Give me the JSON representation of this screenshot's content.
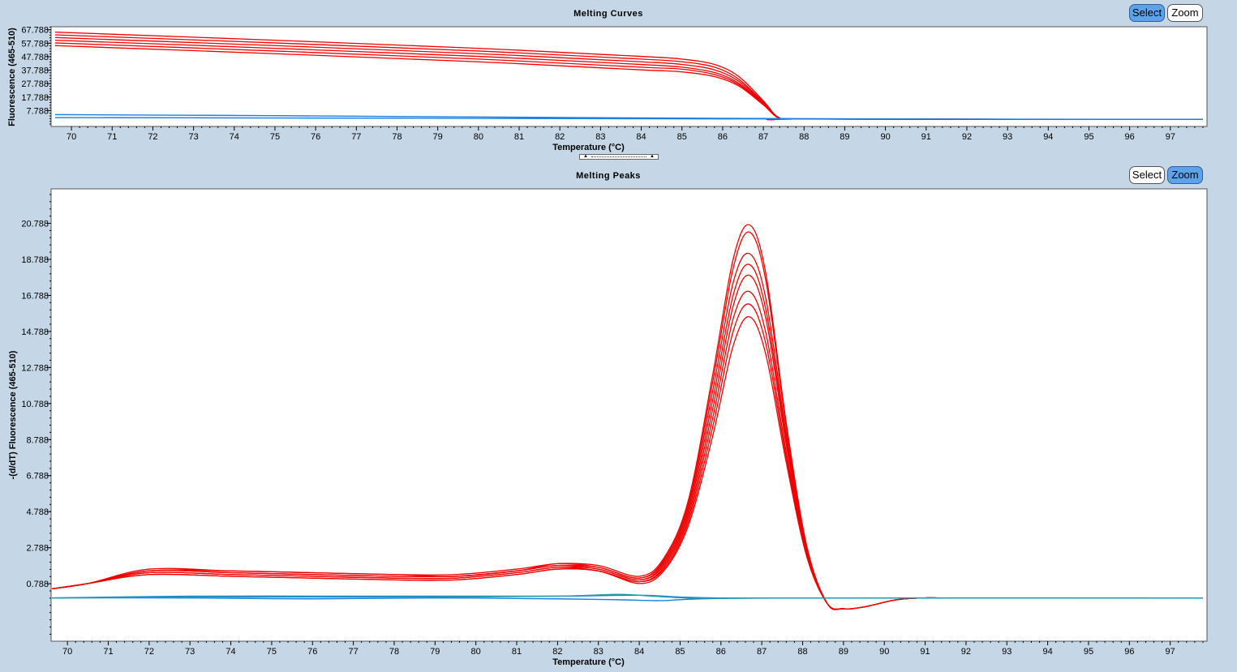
{
  "top_panel": {
    "title": "Melting Curves",
    "select_label": "Select",
    "zoom_label": "Zoom",
    "active_mode": "select"
  },
  "bottom_panel": {
    "title": "Melting Peaks",
    "select_label": "Select",
    "zoom_label": "Zoom",
    "active_mode": "zoom"
  },
  "colors": {
    "background": "#c5d7e7",
    "positive_series": "#ee0000",
    "negative_series": "#1a7fe0",
    "active_button": "#5ea2ea"
  },
  "chart_data": [
    {
      "type": "line",
      "title": "Melting Curves",
      "xlabel": "Temperature (°C)",
      "ylabel": "Fluorescence (465-510)",
      "xlim": [
        69.5,
        97.9
      ],
      "ylim": [
        -4,
        70
      ],
      "x_ticks": [
        "70",
        "71",
        "72",
        "73",
        "74",
        "75",
        "76",
        "77",
        "78",
        "79",
        "80",
        "81",
        "82",
        "83",
        "84",
        "85",
        "86",
        "87",
        "88",
        "89",
        "90",
        "91",
        "92",
        "93",
        "94",
        "95",
        "96",
        "97"
      ],
      "y_ticks": [
        "7.788",
        "17.788",
        "27.788",
        "37.788",
        "47.788",
        "57.788",
        "67.788"
      ],
      "series": [
        {
          "group": "positive",
          "color": "#ee0000",
          "x": [
            69.6,
            75,
            80,
            84,
            85,
            85.8,
            86.4,
            87,
            87.4,
            88,
            97.8
          ],
          "y": [
            56,
            50,
            44,
            38,
            36.5,
            33,
            26,
            12,
            2,
            1.5,
            1.2
          ]
        },
        {
          "group": "positive",
          "color": "#ee0000",
          "x": [
            69.6,
            75,
            80,
            84,
            85,
            85.8,
            86.4,
            87,
            87.4,
            88,
            97.8
          ],
          "y": [
            58,
            52,
            46,
            40,
            38.5,
            34.5,
            27,
            12.5,
            2,
            1.5,
            1.2
          ]
        },
        {
          "group": "positive",
          "color": "#ee0000",
          "x": [
            69.6,
            75,
            80,
            84,
            85,
            85.8,
            86.4,
            87,
            87.4,
            88,
            97.8
          ],
          "y": [
            60,
            54,
            48,
            42,
            40,
            36,
            28,
            13,
            2.2,
            1.5,
            1.2
          ]
        },
        {
          "group": "positive",
          "color": "#ee0000",
          "x": [
            69.6,
            75,
            80,
            84,
            85,
            85.8,
            86.4,
            87,
            87.4,
            88,
            97.8
          ],
          "y": [
            62,
            56,
            50,
            44,
            42,
            38,
            29.5,
            13.5,
            2.2,
            1.5,
            1.2
          ]
        },
        {
          "group": "positive",
          "color": "#ee0000",
          "x": [
            69.6,
            75,
            80,
            84,
            85,
            85.8,
            86.4,
            87,
            87.4,
            88,
            97.8
          ],
          "y": [
            64,
            58,
            52,
            46,
            44,
            40,
            31,
            14,
            2.3,
            1.5,
            1.2
          ]
        },
        {
          "group": "positive",
          "color": "#ee0000",
          "x": [
            69.6,
            75,
            80,
            84,
            85,
            85.8,
            86.4,
            87,
            87.4,
            88,
            97.8
          ],
          "y": [
            66,
            60,
            54,
            48,
            46,
            42,
            33,
            15,
            2.3,
            1.5,
            1.2
          ]
        },
        {
          "group": "negative",
          "color": "#1a7fe0",
          "x": [
            69.6,
            75,
            80,
            85,
            90,
            97.8
          ],
          "y": [
            4.8,
            4.0,
            3.0,
            2.2,
            1.6,
            1.2
          ]
        },
        {
          "group": "negative",
          "color": "#1a7fe0",
          "x": [
            69.6,
            75,
            80,
            85,
            90,
            97.8
          ],
          "y": [
            2.6,
            2.3,
            2.0,
            1.7,
            1.4,
            1.2
          ]
        }
      ]
    },
    {
      "type": "line",
      "title": "Melting Peaks",
      "xlabel": "Temperature (°C)",
      "ylabel": "-(d/dT) Fluorescence (465-510)",
      "xlim": [
        69.6,
        97.9
      ],
      "ylim": [
        -2.4,
        22.7
      ],
      "x_ticks": [
        "70",
        "71",
        "72",
        "73",
        "74",
        "75",
        "76",
        "77",
        "78",
        "79",
        "80",
        "81",
        "82",
        "83",
        "84",
        "85",
        "86",
        "87",
        "88",
        "89",
        "90",
        "91",
        "92",
        "93",
        "94",
        "95",
        "96",
        "97"
      ],
      "y_ticks": [
        "0.788",
        "2.788",
        "4.788",
        "6.788",
        "8.788",
        "10.788",
        "12.788",
        "14.788",
        "16.788",
        "18.788",
        "20.788"
      ],
      "series": [
        {
          "group": "positive",
          "color": "#ee0000",
          "x": [
            69.6,
            70.5,
            72,
            74,
            76,
            78,
            79.5,
            81,
            82,
            83,
            84,
            84.6,
            85.2,
            85.8,
            86.3,
            86.7,
            87.1,
            87.6,
            88.1,
            88.6,
            89.0,
            89.5,
            90.3,
            91,
            92,
            97.8
          ],
          "y": [
            0.5,
            0.8,
            1.3,
            1.2,
            1.1,
            1.0,
            1.0,
            1.3,
            1.6,
            1.5,
            0.8,
            1.5,
            4,
            9,
            14,
            15.6,
            13.5,
            7.5,
            2.3,
            -0.3,
            -0.6,
            -0.5,
            -0.1,
            0,
            0,
            0
          ]
        },
        {
          "group": "positive",
          "color": "#ee0000",
          "x": [
            69.6,
            70.5,
            72,
            74,
            76,
            78,
            79.5,
            81,
            82,
            83,
            84,
            84.6,
            85.2,
            85.8,
            86.3,
            86.7,
            87.1,
            87.6,
            88.1,
            88.6,
            89.0,
            89.5,
            90.3,
            91,
            92,
            97.8
          ],
          "y": [
            0.5,
            0.8,
            1.3,
            1.2,
            1.1,
            1.0,
            1.0,
            1.3,
            1.6,
            1.5,
            0.9,
            1.6,
            4.2,
            9.5,
            14.8,
            16.3,
            14.1,
            7.8,
            2.4,
            -0.3,
            -0.6,
            -0.5,
            -0.1,
            0,
            0,
            0
          ]
        },
        {
          "group": "positive",
          "color": "#ee0000",
          "x": [
            69.6,
            70.5,
            72,
            74,
            76,
            78,
            79.5,
            81,
            82,
            83,
            84,
            84.6,
            85.2,
            85.8,
            86.3,
            86.7,
            87.1,
            87.6,
            88.1,
            88.6,
            89.0,
            89.5,
            90.3,
            91,
            92,
            97.8
          ],
          "y": [
            0.5,
            0.8,
            1.4,
            1.3,
            1.2,
            1.1,
            1.1,
            1.4,
            1.7,
            1.5,
            0.9,
            1.7,
            4.4,
            10,
            15.5,
            17.0,
            14.7,
            8.1,
            2.4,
            -0.3,
            -0.6,
            -0.5,
            -0.1,
            0,
            0,
            0
          ]
        },
        {
          "group": "positive",
          "color": "#ee0000",
          "x": [
            69.6,
            70.5,
            72,
            74,
            76,
            78,
            79.5,
            81,
            82,
            83,
            84,
            84.6,
            85.2,
            85.8,
            86.3,
            86.7,
            87.1,
            87.6,
            88.1,
            88.6,
            89.0,
            89.5,
            90.3,
            91,
            92,
            97.8
          ],
          "y": [
            0.5,
            0.8,
            1.4,
            1.3,
            1.2,
            1.1,
            1.1,
            1.4,
            1.7,
            1.6,
            1.0,
            1.8,
            4.6,
            10.5,
            16.2,
            17.9,
            15.5,
            8.5,
            2.5,
            -0.3,
            -0.6,
            -0.5,
            -0.1,
            0,
            0,
            0
          ]
        },
        {
          "group": "positive",
          "color": "#ee0000",
          "x": [
            69.6,
            70.5,
            72,
            74,
            76,
            78,
            79.5,
            81,
            82,
            83,
            84,
            84.6,
            85.2,
            85.8,
            86.3,
            86.7,
            87.1,
            87.6,
            88.1,
            88.6,
            89.0,
            89.5,
            90.3,
            91,
            92,
            97.8
          ],
          "y": [
            0.5,
            0.8,
            1.5,
            1.4,
            1.3,
            1.2,
            1.2,
            1.5,
            1.8,
            1.6,
            1.0,
            1.9,
            4.8,
            11,
            16.8,
            18.5,
            16.0,
            8.8,
            2.6,
            -0.3,
            -0.6,
            -0.5,
            -0.1,
            0,
            0,
            0
          ]
        },
        {
          "group": "positive",
          "color": "#ee0000",
          "x": [
            69.6,
            70.5,
            72,
            74,
            76,
            78,
            79.5,
            81,
            82,
            83,
            84,
            84.6,
            85.2,
            85.8,
            86.3,
            86.7,
            87.1,
            87.6,
            88.1,
            88.6,
            89.0,
            89.5,
            90.3,
            91,
            92,
            97.8
          ],
          "y": [
            0.5,
            0.8,
            1.5,
            1.4,
            1.3,
            1.2,
            1.2,
            1.5,
            1.8,
            1.7,
            1.1,
            2.0,
            5.0,
            11.5,
            17.5,
            19.1,
            16.6,
            9.1,
            2.7,
            -0.3,
            -0.6,
            -0.5,
            -0.1,
            0,
            0,
            0
          ]
        },
        {
          "group": "positive",
          "color": "#ee0000",
          "x": [
            69.6,
            70.5,
            72,
            74,
            76,
            78,
            79.5,
            81,
            82,
            83,
            84,
            84.6,
            85.2,
            85.8,
            86.3,
            86.7,
            87.1,
            87.6,
            88.1,
            88.6,
            89.0,
            89.5,
            90.3,
            91,
            92,
            97.8
          ],
          "y": [
            0.5,
            0.8,
            1.5,
            1.5,
            1.4,
            1.3,
            1.2,
            1.5,
            1.9,
            1.7,
            1.1,
            2.1,
            5.2,
            12,
            18.3,
            20.3,
            17.6,
            9.5,
            2.8,
            -0.3,
            -0.6,
            -0.5,
            -0.1,
            0,
            0,
            0
          ]
        },
        {
          "group": "positive",
          "color": "#ee0000",
          "x": [
            69.6,
            70.5,
            72,
            74,
            76,
            78,
            79.5,
            81,
            82,
            83,
            84,
            84.6,
            85.2,
            85.8,
            86.3,
            86.7,
            87.1,
            87.6,
            88.1,
            88.6,
            89.0,
            89.5,
            90.3,
            91,
            92,
            97.8
          ],
          "y": [
            0.5,
            0.8,
            1.6,
            1.5,
            1.4,
            1.3,
            1.3,
            1.6,
            1.9,
            1.8,
            1.2,
            2.2,
            5.4,
            12.4,
            18.8,
            20.7,
            18.0,
            9.7,
            2.9,
            -0.3,
            -0.6,
            -0.5,
            -0.1,
            0,
            0,
            0
          ]
        },
        {
          "group": "negative",
          "color": "#1a7fe0",
          "x": [
            69.6,
            73,
            76,
            79,
            82,
            84,
            85,
            86,
            88,
            97.8
          ],
          "y": [
            0,
            0.1,
            0.1,
            0.1,
            0.1,
            0.15,
            0.05,
            0,
            0,
            0
          ]
        },
        {
          "group": "negative",
          "color": "#1a7fe0",
          "x": [
            69.6,
            73,
            76,
            79,
            82,
            83.5,
            84.5,
            85.5,
            88,
            97.8
          ],
          "y": [
            0,
            0,
            -0.05,
            0,
            -0.05,
            -0.1,
            -0.15,
            -0.05,
            0,
            0
          ]
        },
        {
          "group": "negative",
          "color": "#20a0a0",
          "x": [
            69.6,
            73,
            76,
            79,
            82,
            83.5,
            84.3,
            85.2,
            86.5,
            97.8
          ],
          "y": [
            0,
            0.05,
            0.05,
            0.05,
            0.1,
            0.2,
            0.1,
            0,
            0,
            0
          ]
        }
      ]
    }
  ]
}
